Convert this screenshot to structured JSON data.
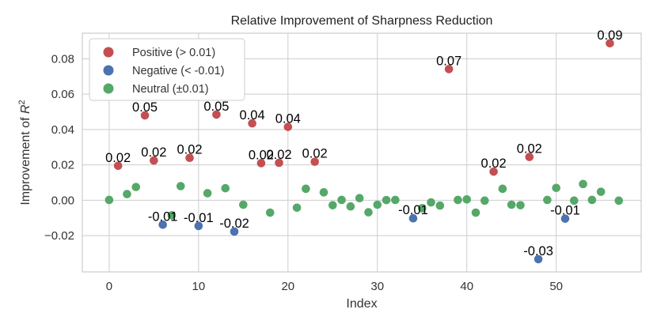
{
  "chart_data": {
    "type": "scatter",
    "title": "Relative Improvement of Sharpness Reduction",
    "xlabel": "Index",
    "ylabel": "Improvement of R²",
    "ylabel_main": "Improvement of ",
    "ylabel_var": "R",
    "ylabel_sup": "2",
    "xlim": [
      -3,
      59.5
    ],
    "ylim": [
      -0.0405,
      0.0945
    ],
    "xticks": [
      0,
      10,
      20,
      30,
      40,
      50
    ],
    "yticks": [
      -0.02,
      0.0,
      0.02,
      0.04,
      0.06,
      0.08
    ],
    "ytick_labels": [
      "−0.02",
      "0.00",
      "0.02",
      "0.04",
      "0.06",
      "0.08"
    ],
    "grid": true,
    "legend_position": "top-left",
    "colors": {
      "positive": "#c44e52",
      "negative": "#4c72b0",
      "neutral": "#55a868"
    },
    "series": [
      {
        "name": "Positive (> 0.01)",
        "key": "positive",
        "x": [
          1,
          4,
          5,
          9,
          12,
          16,
          17,
          19,
          20,
          23,
          38,
          43,
          47,
          56
        ],
        "y": [
          0.0195,
          0.048,
          0.0225,
          0.024,
          0.0485,
          0.0435,
          0.021,
          0.0212,
          0.0415,
          0.0218,
          0.0742,
          0.0162,
          0.0245,
          0.0888
        ]
      },
      {
        "name": "Negative (< -0.01)",
        "key": "negative",
        "x": [
          6,
          10,
          14,
          34,
          48,
          51
        ],
        "y": [
          -0.0138,
          -0.0145,
          -0.0177,
          -0.0102,
          -0.0333,
          -0.0104
        ]
      },
      {
        "name": "Neutral (±0.01)",
        "key": "neutral",
        "x": [
          0,
          2,
          3,
          7,
          8,
          11,
          13,
          15,
          18,
          21,
          22,
          24,
          25,
          26,
          27,
          28,
          29,
          30,
          31,
          32,
          35,
          36,
          37,
          39,
          40,
          41,
          42,
          44,
          45,
          46,
          49,
          50,
          52,
          53,
          54,
          55,
          57
        ],
        "y": [
          0.0002,
          0.0035,
          0.0075,
          -0.0085,
          0.008,
          0.004,
          0.0068,
          -0.0025,
          -0.007,
          -0.0042,
          0.0065,
          0.0045,
          -0.0028,
          0.0002,
          -0.0035,
          0.0012,
          -0.0068,
          -0.0025,
          0.0001,
          0.0002,
          -0.0045,
          -0.0012,
          -0.003,
          0.0002,
          0.0005,
          -0.007,
          -0.0002,
          0.0065,
          -0.0025,
          -0.0028,
          0.0002,
          0.007,
          -0.0002,
          0.0092,
          0.0002,
          0.0048,
          -0.0002
        ]
      }
    ],
    "annotations": [
      {
        "x": 1,
        "y": 0.0195,
        "text": "0.02"
      },
      {
        "x": 4,
        "y": 0.048,
        "text": "0.05"
      },
      {
        "x": 5,
        "y": 0.0225,
        "text": "0.02"
      },
      {
        "x": 9,
        "y": 0.024,
        "text": "0.02"
      },
      {
        "x": 12,
        "y": 0.0485,
        "text": "0.05"
      },
      {
        "x": 16,
        "y": 0.0435,
        "text": "0.04"
      },
      {
        "x": 17,
        "y": 0.021,
        "text": "0.02"
      },
      {
        "x": 19,
        "y": 0.0212,
        "text": "0.02"
      },
      {
        "x": 20,
        "y": 0.0415,
        "text": "0.04"
      },
      {
        "x": 23,
        "y": 0.0218,
        "text": "0.02"
      },
      {
        "x": 38,
        "y": 0.0742,
        "text": "0.07"
      },
      {
        "x": 43,
        "y": 0.0162,
        "text": "0.02"
      },
      {
        "x": 47,
        "y": 0.0245,
        "text": "0.02"
      },
      {
        "x": 56,
        "y": 0.0888,
        "text": "0.09"
      },
      {
        "x": 6,
        "y": -0.0138,
        "text": "-0.01"
      },
      {
        "x": 10,
        "y": -0.0145,
        "text": "-0.01"
      },
      {
        "x": 14,
        "y": -0.0177,
        "text": "-0.02"
      },
      {
        "x": 34,
        "y": -0.0102,
        "text": "-0.01"
      },
      {
        "x": 48,
        "y": -0.0333,
        "text": "-0.03"
      },
      {
        "x": 51,
        "y": -0.0104,
        "text": "-0.01"
      }
    ]
  }
}
